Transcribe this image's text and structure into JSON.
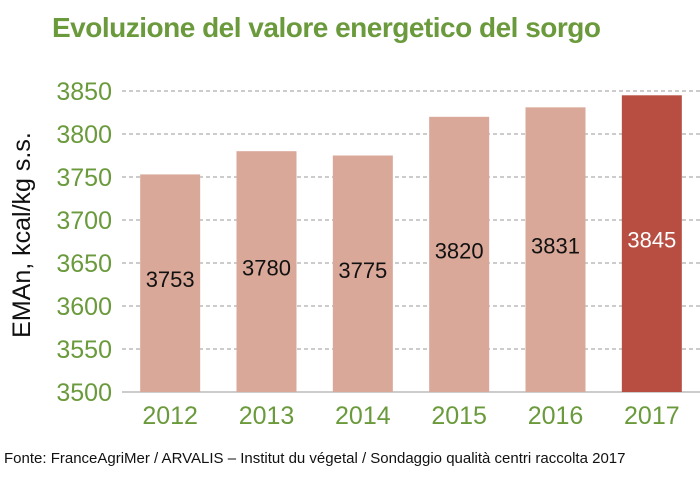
{
  "chart_data": {
    "type": "bar",
    "title": "Evoluzione del valore energetico del sorgo",
    "ylabel": "EMAn, kcal/kg s.s.",
    "xlabel": "",
    "categories": [
      "2012",
      "2013",
      "2014",
      "2015",
      "2016",
      "2017"
    ],
    "values": [
      3753,
      3780,
      3775,
      3820,
      3831,
      3845
    ],
    "data_labels": [
      "3753",
      "3780",
      "3775",
      "3820",
      "3831",
      "3845"
    ],
    "ylim": [
      3500,
      3850
    ],
    "yticks": [
      3500,
      3550,
      3600,
      3650,
      3700,
      3750,
      3800,
      3850
    ],
    "grid": "horizontal-dashed",
    "legend": "none",
    "colors": {
      "bar": "#d9a898",
      "highlight_bar": "#b84e42",
      "axis_text": "#6a9a3c",
      "title": "#6a9a3c",
      "grid": "#9a9a9a"
    },
    "highlight_category": "2017"
  },
  "footer": {
    "source": "Fonte: FranceAgriMer / ARVALIS – Institut du végetal / Sondaggio qualità centri raccolta 2017"
  }
}
